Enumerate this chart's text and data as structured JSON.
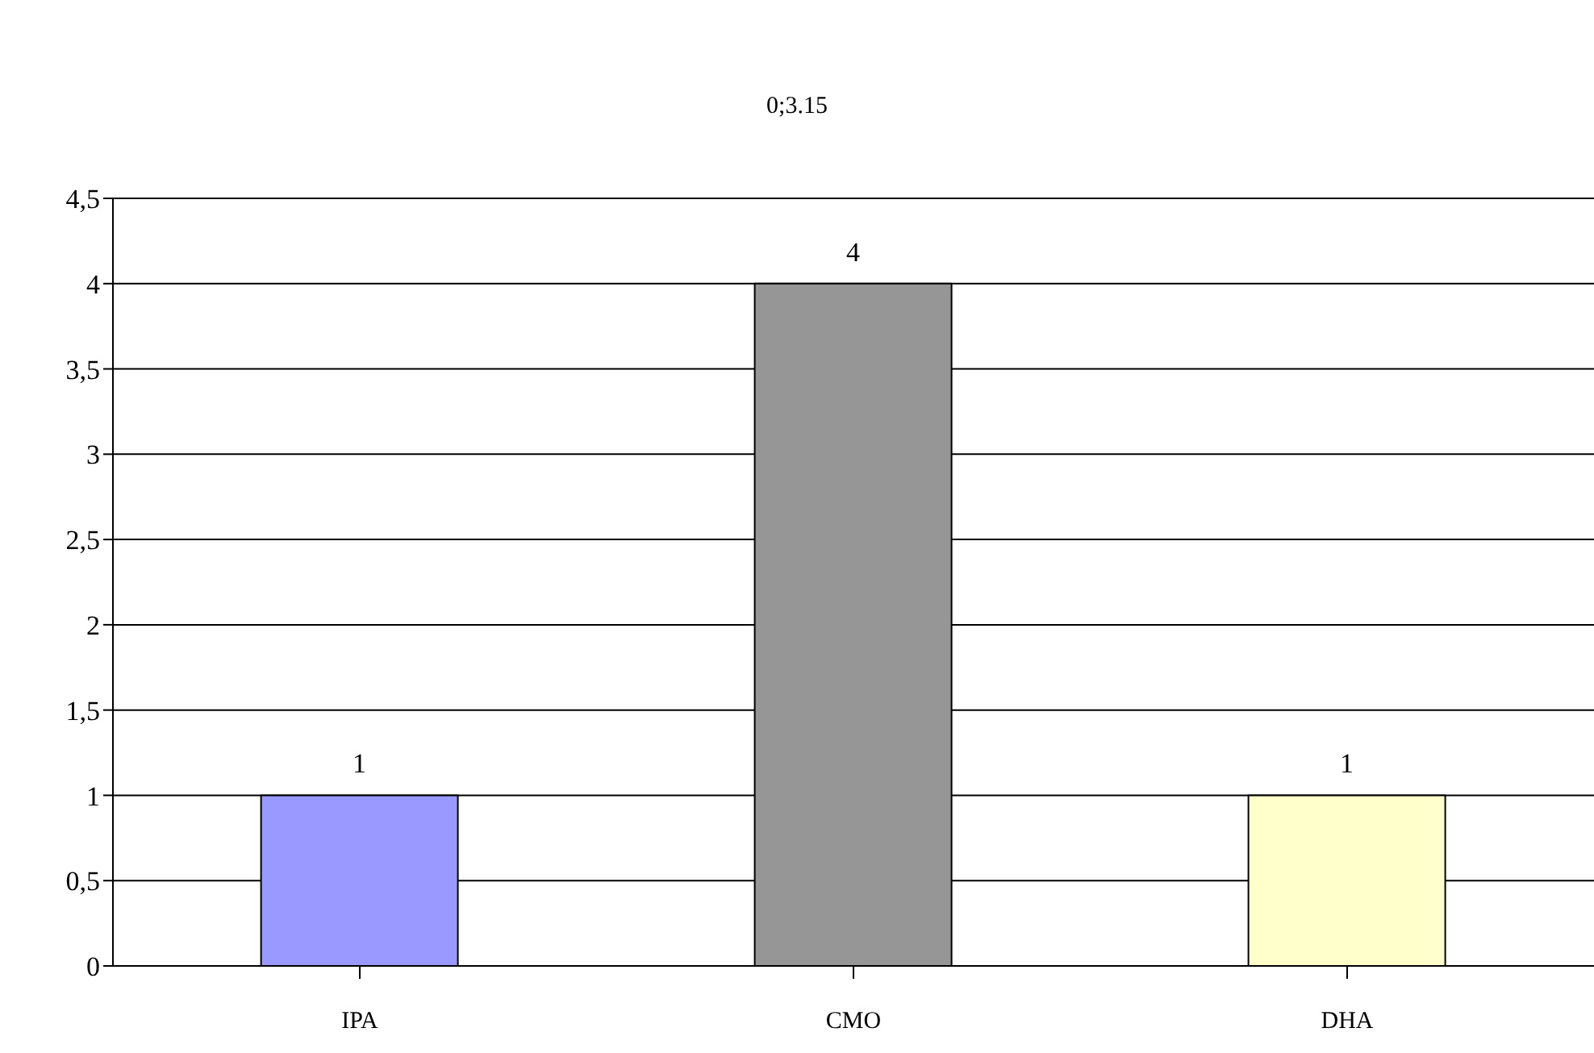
{
  "chart_data": {
    "type": "bar",
    "title": "0;3.15",
    "categories": [
      "IPA",
      "CMO",
      "DHA"
    ],
    "values": [
      1,
      4,
      1
    ],
    "colors": [
      "#9999ff",
      "#969696",
      "#ffffcc"
    ],
    "ylim": [
      0,
      4.5
    ],
    "yticks": [
      0,
      {
        "value": 0.5,
        "label": "0,5"
      },
      1,
      {
        "value": 1.5,
        "label": "1,5"
      },
      2,
      {
        "value": 2.5,
        "label": "2,5"
      },
      3,
      {
        "value": 3.5,
        "label": "3,5"
      },
      4,
      {
        "value": 4.5,
        "label": "4,5"
      }
    ],
    "grid": "y",
    "data_labels": true
  }
}
